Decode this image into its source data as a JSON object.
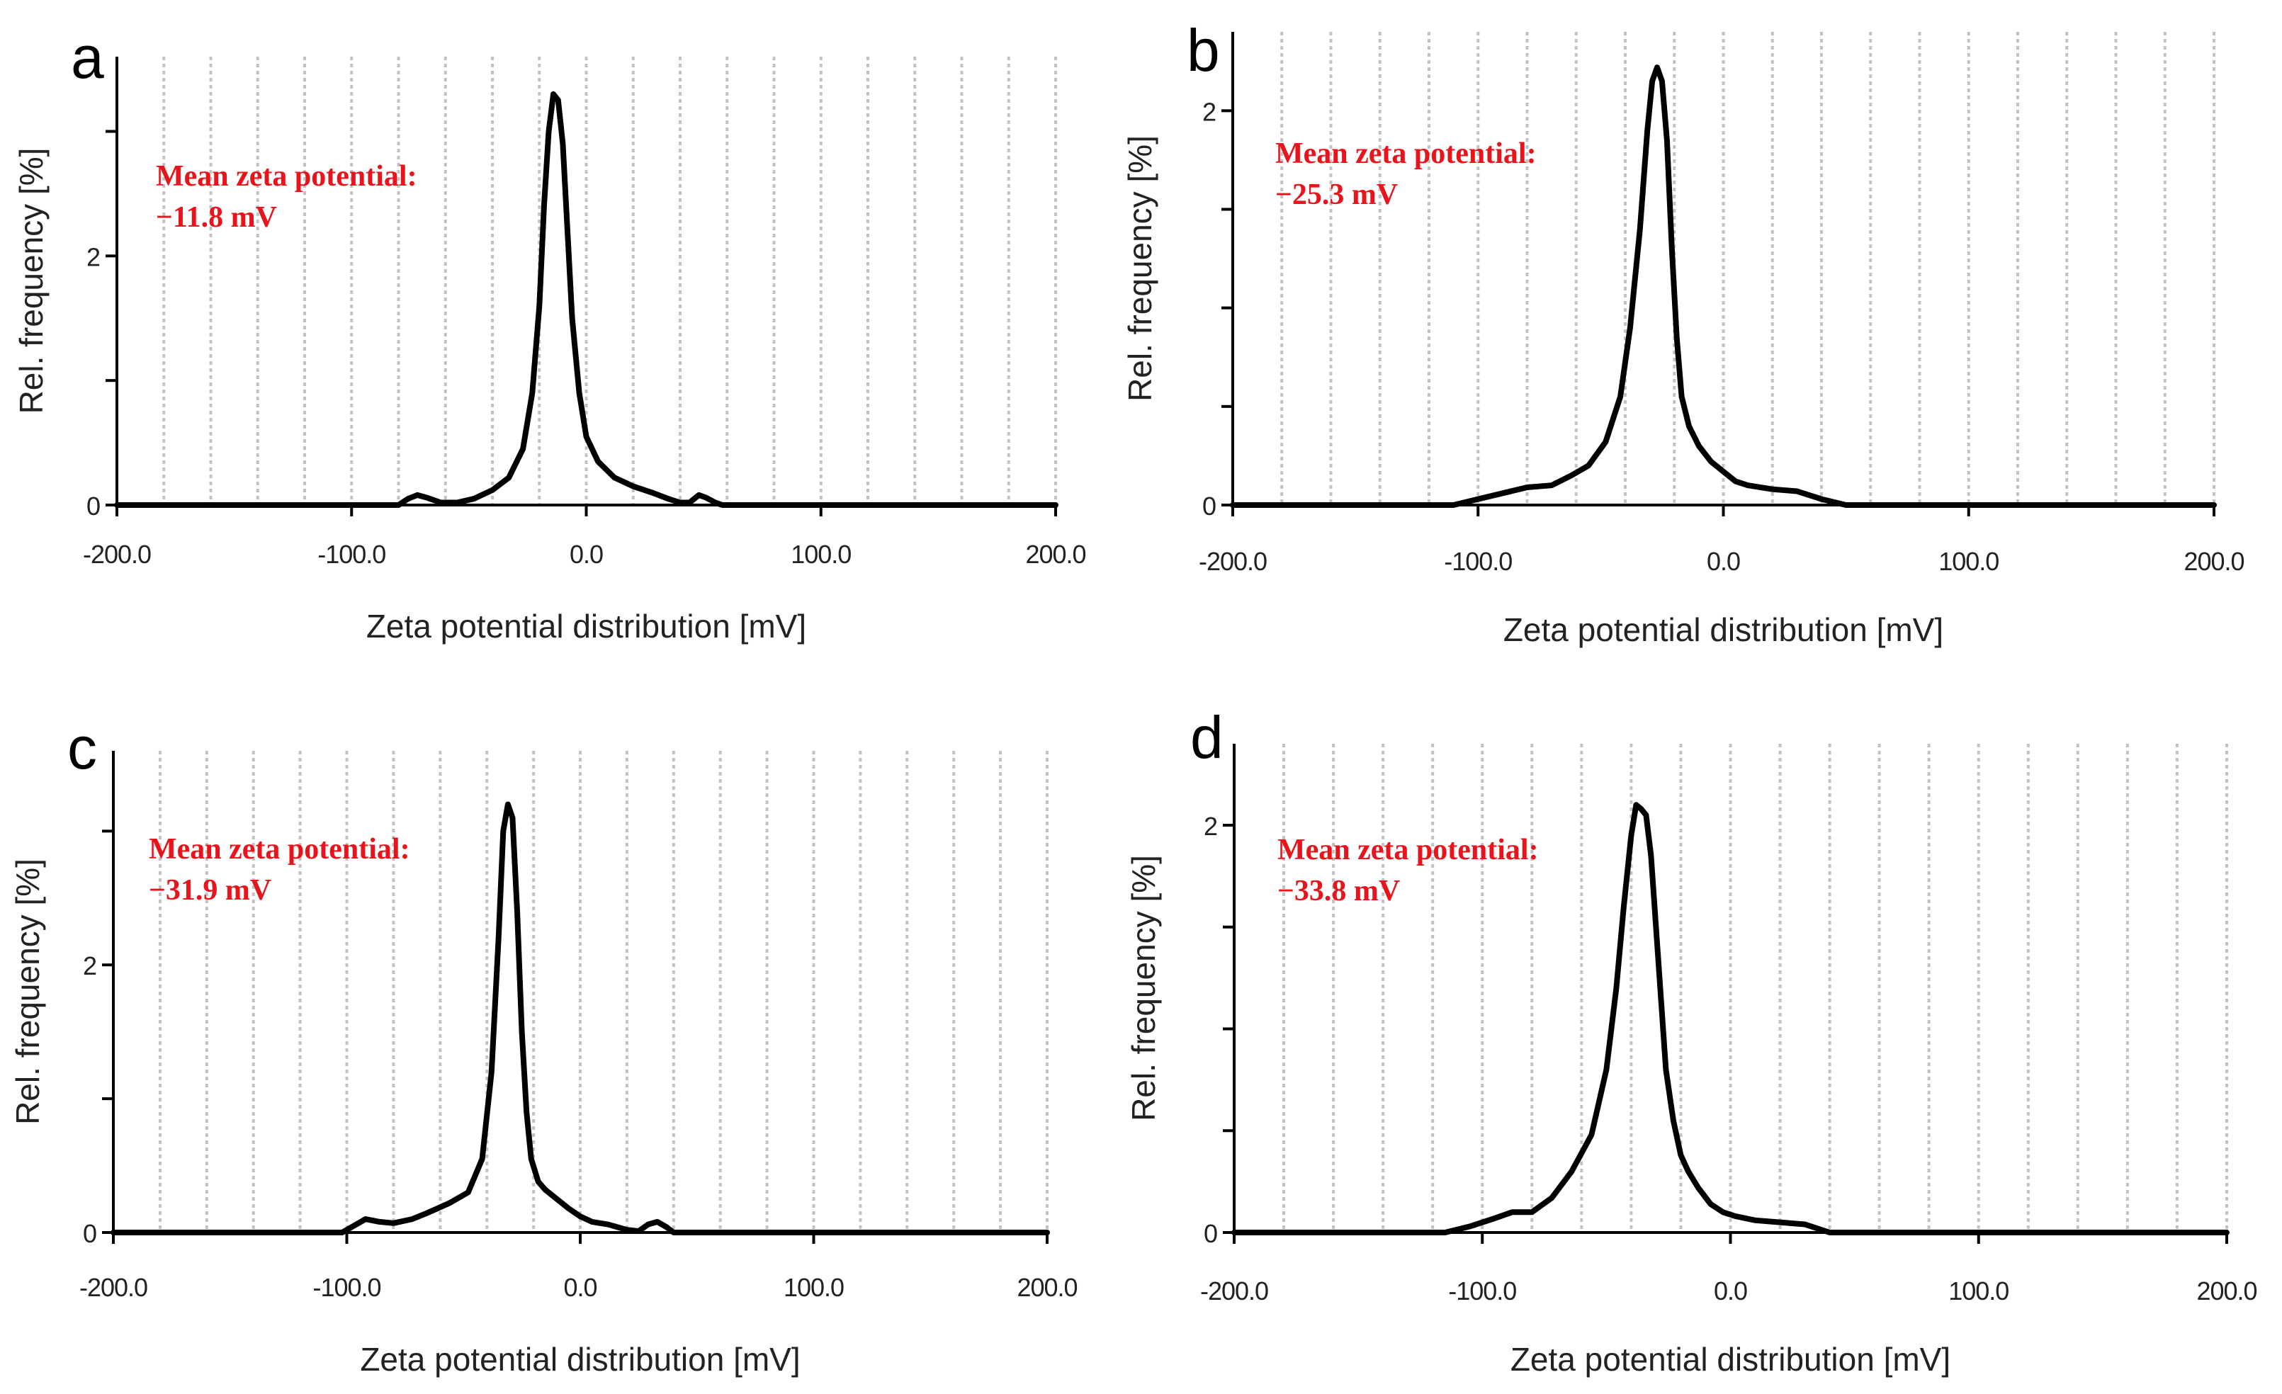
{
  "chart_data": [
    {
      "panel": "a",
      "type": "line",
      "annotation": {
        "line1": "Mean zeta potential:",
        "line2": "−11.8 mV"
      },
      "xlabel": "Zeta potential distribution [mV]",
      "ylabel": "Rel. frequency [%]",
      "xlim": [
        -200,
        200
      ],
      "ylim": [
        0,
        3.6
      ],
      "x_ticks": [
        -200,
        -100,
        0,
        100,
        200
      ],
      "x_tick_labels": [
        "-200.0",
        "-100.0",
        "0.0",
        "100.0",
        "200.0"
      ],
      "y_ticks": [
        0,
        1,
        2,
        3
      ],
      "y_tick_labels": [
        "0",
        "",
        "2",
        ""
      ],
      "grid_spacing": 20,
      "series": [
        {
          "name": "a",
          "x": [
            -200,
            -80,
            -76,
            -72,
            -68,
            -62,
            -55,
            -48,
            -40,
            -33,
            -27,
            -23,
            -20,
            -18,
            -16,
            -14,
            -12,
            -10,
            -8,
            -6,
            -3,
            0,
            5,
            12,
            20,
            28,
            35,
            40,
            44,
            48,
            51,
            55,
            58,
            200
          ],
          "y": [
            0,
            0,
            0.05,
            0.08,
            0.06,
            0.02,
            0.02,
            0.05,
            0.12,
            0.22,
            0.45,
            0.9,
            1.6,
            2.4,
            3.0,
            3.3,
            3.25,
            2.9,
            2.2,
            1.5,
            0.9,
            0.55,
            0.35,
            0.22,
            0.15,
            0.1,
            0.05,
            0.02,
            0.02,
            0.08,
            0.06,
            0.02,
            0,
            0
          ]
        }
      ]
    },
    {
      "panel": "b",
      "type": "line",
      "annotation": {
        "line1": "Mean zeta potential:",
        "line2": "−25.3 mV"
      },
      "xlabel": "Zeta potential distribution [mV]",
      "ylabel": "Rel. frequency [%]",
      "xlim": [
        -200,
        200
      ],
      "ylim": [
        0,
        2.4
      ],
      "x_ticks": [
        -200,
        -100,
        0,
        100,
        200
      ],
      "x_tick_labels": [
        "-200.0",
        "-100.0",
        "0.0",
        "100.0",
        "200.0"
      ],
      "y_ticks": [
        0,
        0.5,
        1,
        1.5,
        2
      ],
      "y_tick_labels": [
        "0",
        "",
        "",
        "",
        "2"
      ],
      "grid_spacing": 20,
      "series": [
        {
          "name": "b",
          "x": [
            -200,
            -110,
            -100,
            -90,
            -80,
            -70,
            -62,
            -55,
            -48,
            -42,
            -38,
            -34,
            -31,
            -29,
            -27,
            -25,
            -23,
            -21,
            -19,
            -17,
            -14,
            -10,
            -5,
            0,
            5,
            10,
            20,
            30,
            40,
            50,
            200
          ],
          "y": [
            0,
            0,
            0.03,
            0.06,
            0.09,
            0.1,
            0.15,
            0.2,
            0.32,
            0.55,
            0.9,
            1.4,
            1.9,
            2.15,
            2.22,
            2.15,
            1.85,
            1.3,
            0.85,
            0.55,
            0.4,
            0.3,
            0.22,
            0.17,
            0.12,
            0.1,
            0.08,
            0.07,
            0.03,
            0,
            0
          ]
        }
      ]
    },
    {
      "panel": "c",
      "type": "line",
      "annotation": {
        "line1": "Mean zeta potential:",
        "line2": "−31.9 mV"
      },
      "xlabel": "Zeta potential distribution [mV]",
      "ylabel": "Rel. frequency [%]",
      "xlim": [
        -200,
        200
      ],
      "ylim": [
        0,
        3.6
      ],
      "x_ticks": [
        -200,
        -100,
        0,
        100,
        200
      ],
      "x_tick_labels": [
        "-200.0",
        "-100.0",
        "0.0",
        "100.0",
        "200.0"
      ],
      "y_ticks": [
        0,
        1,
        2,
        3
      ],
      "y_tick_labels": [
        "0",
        "",
        "2",
        ""
      ],
      "grid_spacing": 20,
      "series": [
        {
          "name": "c",
          "x": [
            -200,
            -102,
            -96,
            -92,
            -86,
            -80,
            -72,
            -65,
            -56,
            -48,
            -42,
            -38,
            -35,
            -33,
            -31,
            -29,
            -27,
            -25,
            -23,
            -21,
            -18,
            -15,
            -10,
            -5,
            0,
            5,
            12,
            20,
            25,
            29,
            33,
            37,
            40,
            200
          ],
          "y": [
            0,
            0,
            0.06,
            0.1,
            0.08,
            0.07,
            0.1,
            0.15,
            0.22,
            0.3,
            0.55,
            1.2,
            2.2,
            3.0,
            3.2,
            3.1,
            2.4,
            1.5,
            0.9,
            0.55,
            0.38,
            0.32,
            0.25,
            0.18,
            0.12,
            0.08,
            0.06,
            0.02,
            0.01,
            0.06,
            0.08,
            0.04,
            0,
            0
          ]
        }
      ]
    },
    {
      "panel": "d",
      "type": "line",
      "annotation": {
        "line1": "Mean zeta potential:",
        "line2": "−33.8 mV"
      },
      "xlabel": "Zeta potential distribution [mV]",
      "ylabel": "Rel. frequency [%]",
      "xlim": [
        -200,
        200
      ],
      "ylim": [
        0,
        2.4
      ],
      "x_ticks": [
        -200,
        -100,
        0,
        100,
        200
      ],
      "x_tick_labels": [
        "-200.0",
        "-100.0",
        "0.0",
        "100.0",
        "200.0"
      ],
      "y_ticks": [
        0,
        0.5,
        1,
        1.5,
        2
      ],
      "y_tick_labels": [
        "0",
        "",
        "",
        "",
        "2"
      ],
      "grid_spacing": 20,
      "series": [
        {
          "name": "d",
          "x": [
            -200,
            -115,
            -105,
            -95,
            -88,
            -80,
            -72,
            -64,
            -56,
            -50,
            -46,
            -43,
            -40,
            -38,
            -36,
            -34,
            -32,
            -30,
            -28,
            -26,
            -23,
            -20,
            -17,
            -13,
            -8,
            -3,
            2,
            10,
            20,
            30,
            40,
            200
          ],
          "y": [
            0,
            0,
            0.03,
            0.07,
            0.1,
            0.1,
            0.17,
            0.3,
            0.48,
            0.8,
            1.2,
            1.6,
            1.95,
            2.1,
            2.08,
            2.05,
            1.85,
            1.5,
            1.15,
            0.8,
            0.55,
            0.38,
            0.3,
            0.22,
            0.14,
            0.1,
            0.08,
            0.06,
            0.05,
            0.04,
            0,
            0
          ]
        }
      ]
    }
  ]
}
